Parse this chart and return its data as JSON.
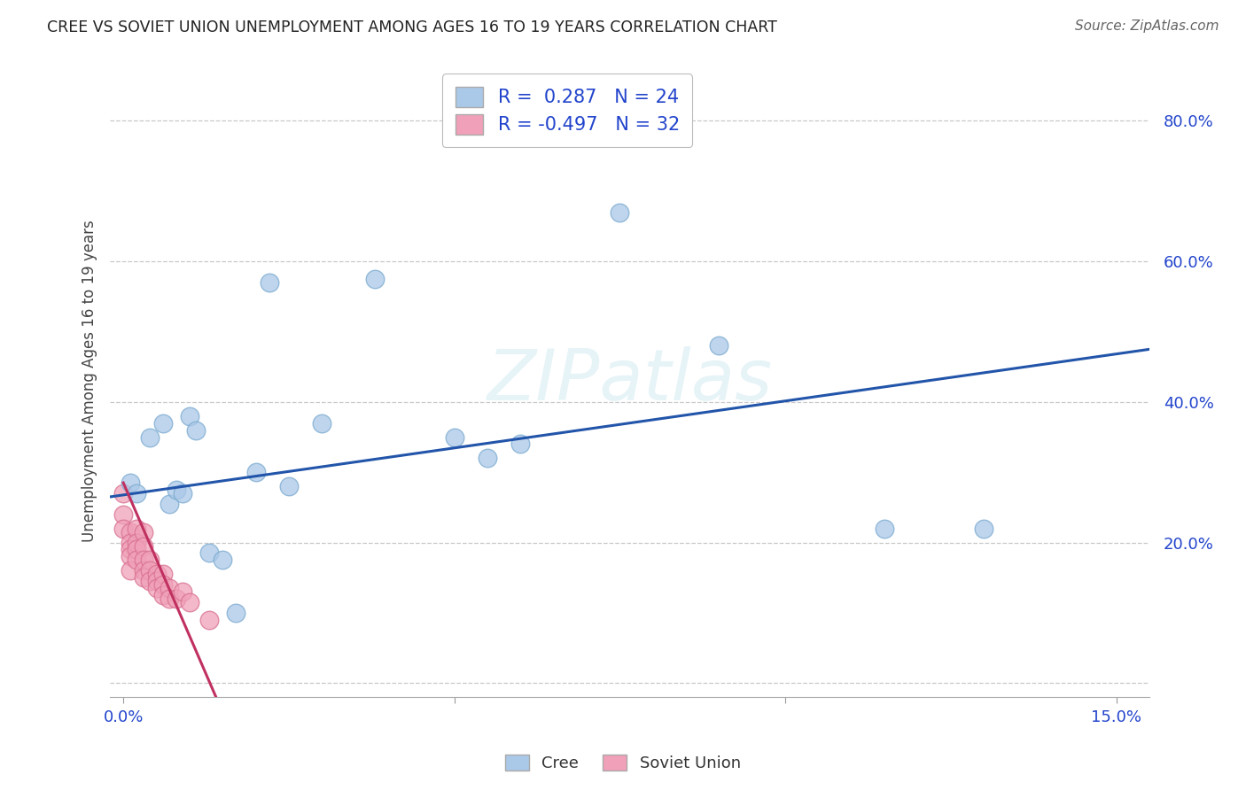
{
  "title": "CREE VS SOVIET UNION UNEMPLOYMENT AMONG AGES 16 TO 19 YEARS CORRELATION CHART",
  "source": "Source: ZipAtlas.com",
  "ylabel_label": "Unemployment Among Ages 16 to 19 years",
  "x_min": -0.002,
  "x_max": 0.155,
  "y_min": -0.02,
  "y_max": 0.88,
  "x_ticks": [
    0.0,
    0.05,
    0.1,
    0.15
  ],
  "y_ticks": [
    0.0,
    0.2,
    0.4,
    0.6,
    0.8
  ],
  "background_color": "#ffffff",
  "grid_color": "#c8c8c8",
  "cree_color": "#aac8e8",
  "cree_edge_color": "#7aaad0",
  "cree_line_color": "#2255aa",
  "soviet_color": "#f0a0b8",
  "soviet_edge_color": "#d87090",
  "soviet_line_color": "#c03060",
  "cree_R": 0.287,
  "cree_N": 24,
  "soviet_R": -0.497,
  "soviet_N": 32,
  "legend_text_color": "#2244cc",
  "watermark": "ZIPatlas",
  "cree_x": [
    0.001,
    0.002,
    0.004,
    0.006,
    0.007,
    0.008,
    0.009,
    0.01,
    0.011,
    0.013,
    0.015,
    0.017,
    0.02,
    0.022,
    0.025,
    0.03,
    0.038,
    0.05,
    0.055,
    0.06,
    0.075,
    0.09,
    0.115,
    0.13
  ],
  "cree_y": [
    0.285,
    0.27,
    0.35,
    0.37,
    0.255,
    0.275,
    0.27,
    0.38,
    0.36,
    0.185,
    0.175,
    0.1,
    0.3,
    0.57,
    0.28,
    0.37,
    0.575,
    0.35,
    0.32,
    0.34,
    0.67,
    0.48,
    0.22,
    0.22
  ],
  "soviet_x": [
    0.0,
    0.0,
    0.0,
    0.001,
    0.001,
    0.001,
    0.001,
    0.001,
    0.002,
    0.002,
    0.002,
    0.002,
    0.003,
    0.003,
    0.003,
    0.003,
    0.003,
    0.004,
    0.004,
    0.004,
    0.005,
    0.005,
    0.005,
    0.006,
    0.006,
    0.006,
    0.007,
    0.007,
    0.008,
    0.009,
    0.01,
    0.013
  ],
  "soviet_y": [
    0.27,
    0.24,
    0.22,
    0.215,
    0.2,
    0.19,
    0.18,
    0.16,
    0.22,
    0.2,
    0.19,
    0.175,
    0.215,
    0.195,
    0.175,
    0.16,
    0.15,
    0.175,
    0.16,
    0.145,
    0.155,
    0.145,
    0.135,
    0.155,
    0.14,
    0.125,
    0.135,
    0.12,
    0.12,
    0.13,
    0.115,
    0.09
  ],
  "cree_line_x0": -0.002,
  "cree_line_x1": 0.155,
  "cree_line_y0": 0.265,
  "cree_line_y1": 0.475,
  "soviet_line_x0": 0.0,
  "soviet_line_x1": 0.014,
  "soviet_line_y0": 0.285,
  "soviet_line_y1": -0.02
}
